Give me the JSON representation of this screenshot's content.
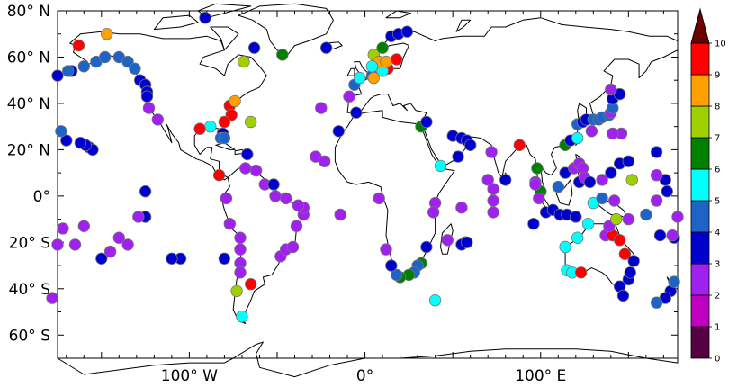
{
  "map": {
    "y_ticks": [
      {
        "lat": 80,
        "label": "80° N"
      },
      {
        "lat": 60,
        "label": "60° N"
      },
      {
        "lat": 40,
        "label": "40° N"
      },
      {
        "lat": 20,
        "label": "20° N"
      },
      {
        "lat": 0,
        "label": "0°"
      },
      {
        "lat": -20,
        "label": "20° S"
      },
      {
        "lat": -40,
        "label": "40° S"
      },
      {
        "lat": -60,
        "label": "60° S"
      }
    ],
    "x_ticks": [
      {
        "lon": -100,
        "label": "100° W"
      },
      {
        "lon": 0,
        "label": "0°"
      },
      {
        "lon": 100,
        "label": "100° E"
      }
    ],
    "lon_range": [
      -175,
      178
    ],
    "lat_range": [
      -70,
      80
    ]
  },
  "colorbar": {
    "levels": [
      "0",
      "1",
      "2",
      "3",
      "4",
      "5",
      "6",
      "7",
      "8",
      "9",
      "10"
    ],
    "colors": [
      "#550040",
      "#c000c0",
      "#a020f0",
      "#0000cc",
      "#1e64c8",
      "#00ffff",
      "#008000",
      "#a0d000",
      "#ffa000",
      "#ff0000"
    ],
    "over_color": "#6a0000"
  },
  "chart_data": {
    "type": "scatter",
    "title": "",
    "x_label": "",
    "y_label": "",
    "points": [
      [
        -163,
        65,
        9.5
      ],
      [
        -147,
        70,
        8
      ],
      [
        -167,
        54,
        3
      ],
      [
        -160,
        56,
        4
      ],
      [
        -153,
        58,
        4
      ],
      [
        -148,
        60,
        4
      ],
      [
        -140,
        60,
        4
      ],
      [
        -135,
        58,
        4
      ],
      [
        -131,
        55,
        4
      ],
      [
        -128,
        50,
        3
      ],
      [
        -125,
        48,
        3
      ],
      [
        -124,
        45,
        3
      ],
      [
        -124,
        43,
        3
      ],
      [
        -123,
        38,
        2
      ],
      [
        -118,
        33,
        2
      ],
      [
        -91,
        77,
        3
      ],
      [
        -47,
        61,
        6
      ],
      [
        -63,
        64,
        3
      ],
      [
        -69,
        58,
        7
      ],
      [
        -175,
        52,
        3
      ],
      [
        -169,
        54,
        4
      ],
      [
        -77,
        39,
        9.5
      ],
      [
        -74,
        41,
        8
      ],
      [
        -76,
        35,
        9.5
      ],
      [
        -80,
        32,
        9.5
      ],
      [
        -81,
        27,
        3
      ],
      [
        -82,
        25,
        4
      ],
      [
        -80,
        25,
        4
      ],
      [
        -88,
        30,
        5
      ],
      [
        -94,
        29,
        9
      ],
      [
        -65,
        32,
        7
      ],
      [
        -67,
        18,
        3
      ],
      [
        -83,
        9,
        9.5
      ],
      [
        -79,
        -1,
        2
      ],
      [
        -77,
        -12,
        2
      ],
      [
        -71,
        -18,
        2
      ],
      [
        -71,
        -23,
        2
      ],
      [
        -71,
        -29,
        2
      ],
      [
        -71,
        -33,
        2
      ],
      [
        -73,
        -41,
        7
      ],
      [
        -70,
        -52,
        5
      ],
      [
        -80,
        -27,
        3
      ],
      [
        -65,
        -38,
        9.5
      ],
      [
        -48,
        -26,
        2
      ],
      [
        -45,
        -23,
        2
      ],
      [
        -41,
        -22,
        2
      ],
      [
        -39,
        -13,
        2
      ],
      [
        -35,
        -8,
        2
      ],
      [
        -35,
        -5,
        2
      ],
      [
        -38,
        -4,
        2
      ],
      [
        -45,
        -1,
        2
      ],
      [
        -51,
        0,
        2
      ],
      [
        -57,
        5,
        2
      ],
      [
        -62,
        11,
        2
      ],
      [
        -68,
        12,
        2
      ],
      [
        -125,
        2,
        3
      ],
      [
        -125,
        -9,
        3
      ],
      [
        -129,
        -9,
        2
      ],
      [
        -135,
        -21,
        2
      ],
      [
        -140,
        -18,
        2
      ],
      [
        -145,
        -24,
        2
      ],
      [
        -150,
        -27,
        3
      ],
      [
        -160,
        -13,
        2
      ],
      [
        -165,
        -21,
        2
      ],
      [
        -157,
        21,
        3
      ],
      [
        -155,
        20,
        3
      ],
      [
        -159,
        22,
        3
      ],
      [
        -162,
        23,
        3
      ],
      [
        -170,
        24,
        3
      ],
      [
        -173,
        28,
        4
      ],
      [
        -172,
        -14,
        2
      ],
      [
        -175,
        -21,
        2
      ],
      [
        -178,
        -44,
        2
      ],
      [
        -105,
        -27,
        3
      ],
      [
        -110,
        -27,
        3
      ],
      [
        -25,
        38,
        2
      ],
      [
        -28,
        17,
        2
      ],
      [
        -23,
        15,
        2
      ],
      [
        -15,
        28,
        3
      ],
      [
        -14,
        -8,
        2
      ],
      [
        -22,
        64,
        3
      ],
      [
        -5,
        36,
        3
      ],
      [
        -9,
        43,
        2
      ],
      [
        -6,
        48,
        4
      ],
      [
        -3,
        51,
        5
      ],
      [
        4,
        52,
        4
      ],
      [
        5,
        61,
        7
      ],
      [
        10,
        64,
        6
      ],
      [
        15,
        69,
        3
      ],
      [
        19,
        70,
        3
      ],
      [
        24,
        71,
        3
      ],
      [
        13,
        55,
        9.5
      ],
      [
        10,
        54,
        5
      ],
      [
        8,
        58,
        8
      ],
      [
        12,
        58,
        8
      ],
      [
        18,
        59,
        9.5
      ],
      [
        5,
        51,
        8
      ],
      [
        4,
        56,
        5
      ],
      [
        32,
        30,
        6
      ],
      [
        35,
        32,
        3
      ],
      [
        50,
        26,
        3
      ],
      [
        55,
        25,
        3
      ],
      [
        58,
        24,
        3
      ],
      [
        60,
        22,
        3
      ],
      [
        53,
        17,
        3
      ],
      [
        43,
        13,
        5
      ],
      [
        40,
        -3,
        2
      ],
      [
        39,
        -7,
        2
      ],
      [
        55,
        -5,
        2
      ],
      [
        57,
        -20,
        3
      ],
      [
        55,
        -21,
        3
      ],
      [
        58,
        -20,
        3
      ],
      [
        47,
        -19,
        2
      ],
      [
        35,
        -22,
        3
      ],
      [
        32,
        -29,
        6
      ],
      [
        30,
        -30,
        4
      ],
      [
        28,
        -33,
        4
      ],
      [
        25,
        -34,
        6
      ],
      [
        20,
        -35,
        6
      ],
      [
        18,
        -34,
        4
      ],
      [
        15,
        -30,
        3
      ],
      [
        12,
        -23,
        2
      ],
      [
        40,
        -45,
        5
      ],
      [
        8,
        -1,
        2
      ],
      [
        72,
        19,
        2
      ],
      [
        70,
        7,
        2
      ],
      [
        73,
        3,
        2
      ],
      [
        73,
        -2,
        2
      ],
      [
        73,
        -7,
        2
      ],
      [
        80,
        7,
        3
      ],
      [
        88,
        22,
        9.5
      ],
      [
        97,
        6,
        2
      ],
      [
        98,
        12,
        6
      ],
      [
        100,
        2,
        6
      ],
      [
        99,
        -1,
        2
      ],
      [
        97,
        5,
        2
      ],
      [
        96,
        -12,
        3
      ],
      [
        103,
        -7,
        3
      ],
      [
        107,
        -6,
        3
      ],
      [
        111,
        -8,
        3
      ],
      [
        115,
        -8,
        3
      ],
      [
        110,
        4,
        4
      ],
      [
        114,
        10,
        3
      ],
      [
        119,
        12,
        2
      ],
      [
        122,
        14,
        2
      ],
      [
        122,
        6,
        3
      ],
      [
        120,
        -9,
        3
      ],
      [
        121,
        -18,
        5
      ],
      [
        114,
        -22,
        5
      ],
      [
        115,
        -32,
        5
      ],
      [
        118,
        -33,
        5
      ],
      [
        123,
        -33,
        9
      ],
      [
        127,
        -12,
        5
      ],
      [
        137,
        -17,
        2
      ],
      [
        141,
        -17,
        9
      ],
      [
        145,
        -19,
        9.5
      ],
      [
        148,
        -25,
        9.5
      ],
      [
        150,
        -36,
        3
      ],
      [
        151,
        -33,
        3
      ],
      [
        145,
        -39,
        3
      ],
      [
        147,
        -43,
        3
      ],
      [
        153,
        -28,
        3
      ],
      [
        139,
        -13,
        2
      ],
      [
        143,
        -10,
        7
      ],
      [
        130,
        -3,
        5
      ],
      [
        135,
        -1,
        4
      ],
      [
        142,
        -2,
        2
      ],
      [
        150,
        -10,
        2
      ],
      [
        114,
        22,
        6
      ],
      [
        117,
        24,
        3
      ],
      [
        121,
        25,
        5
      ],
      [
        121,
        31,
        4
      ],
      [
        124,
        32,
        3
      ],
      [
        126,
        33,
        3
      ],
      [
        130,
        33,
        4
      ],
      [
        133,
        33,
        4
      ],
      [
        135,
        34,
        4
      ],
      [
        139,
        35,
        4
      ],
      [
        140,
        36,
        2
      ],
      [
        141,
        38,
        4
      ],
      [
        141,
        42,
        3
      ],
      [
        145,
        44,
        3
      ],
      [
        140,
        46,
        2
      ],
      [
        146,
        27,
        2
      ],
      [
        141,
        27,
        2
      ],
      [
        129,
        28,
        2
      ],
      [
        124,
        12,
        2
      ],
      [
        125,
        8,
        2
      ],
      [
        128,
        6,
        3
      ],
      [
        135,
        7,
        2
      ],
      [
        140,
        10,
        3
      ],
      [
        145,
        14,
        3
      ],
      [
        150,
        15,
        3
      ],
      [
        152,
        7,
        7
      ],
      [
        166,
        19,
        3
      ],
      [
        171,
        7,
        3
      ],
      [
        172,
        2,
        3
      ],
      [
        166,
        -2,
        2
      ],
      [
        160,
        -8,
        4
      ],
      [
        168,
        -17,
        3
      ],
      [
        176,
        -18,
        3
      ],
      [
        178,
        -9,
        2
      ],
      [
        175,
        -17,
        2
      ],
      [
        174,
        -41,
        3
      ],
      [
        171,
        -44,
        3
      ],
      [
        166,
        -46,
        4
      ],
      [
        176,
        -37,
        4
      ],
      [
        166,
        9,
        2
      ],
      [
        -52,
        5,
        3
      ]
    ]
  }
}
